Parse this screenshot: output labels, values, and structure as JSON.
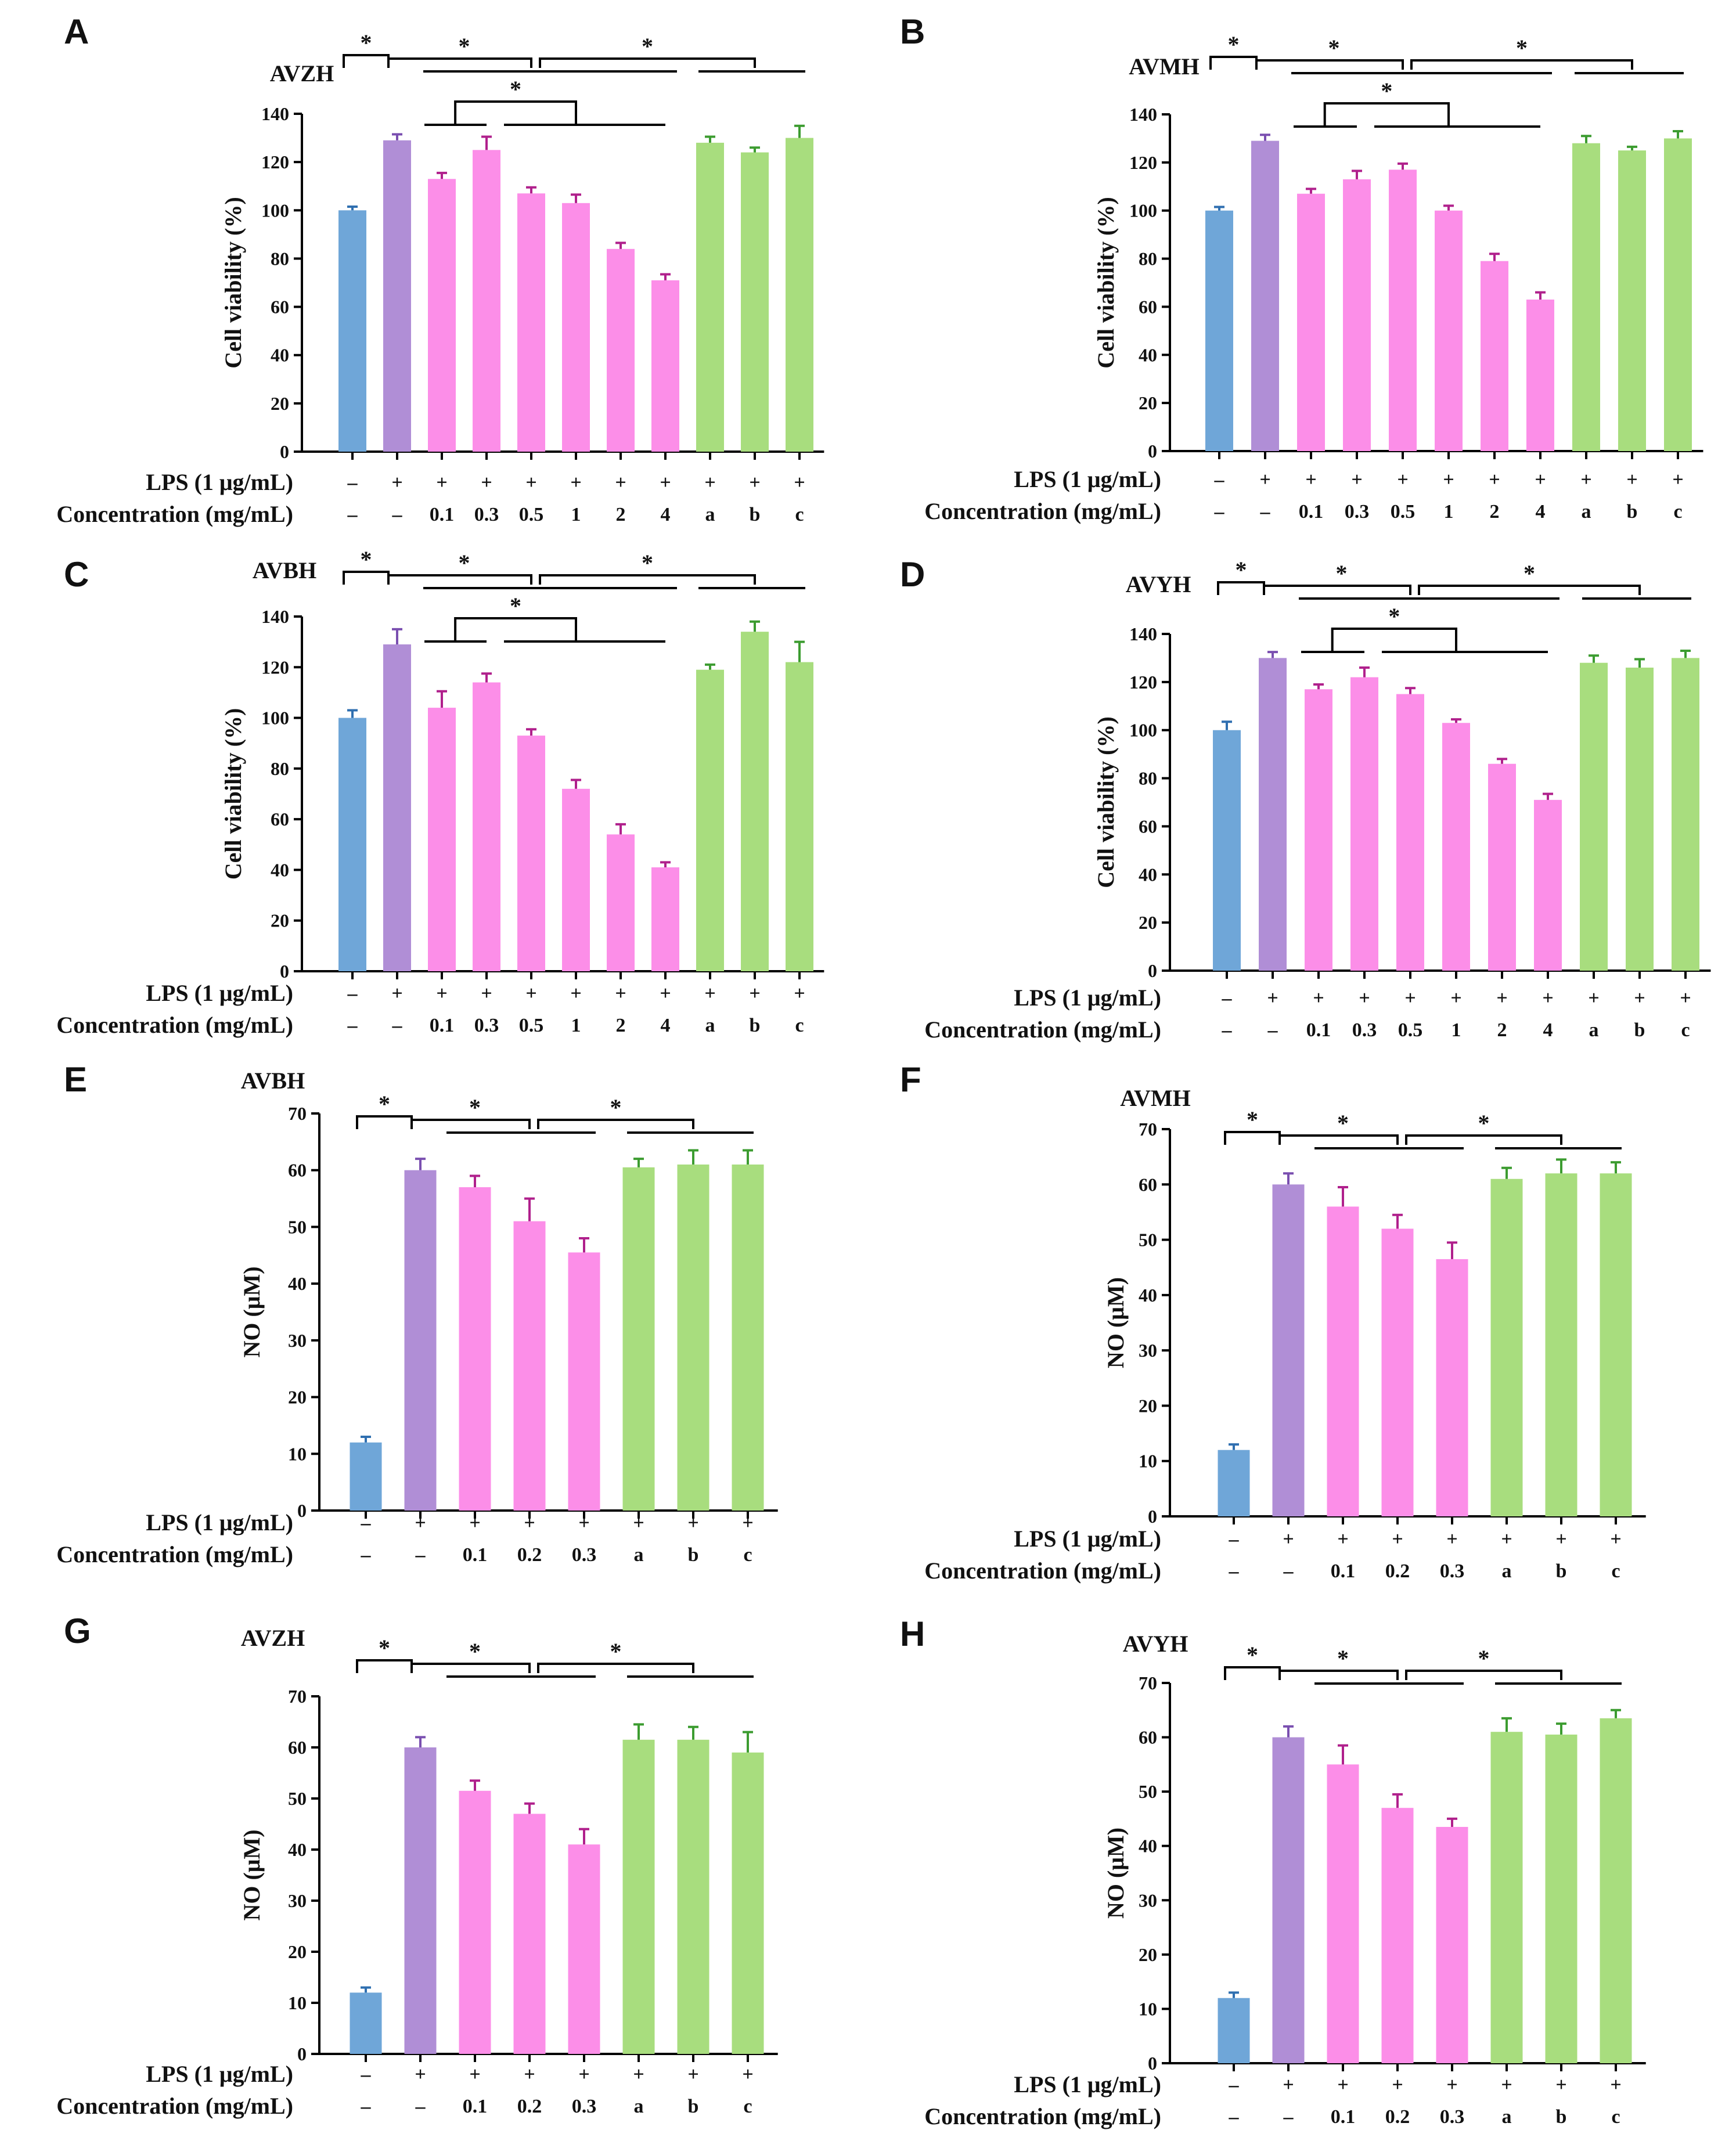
{
  "figure": {
    "lps_label": "LPS (1 μg/mL)",
    "conc_label": "Concentration (mg/mL)",
    "significance_symbol": "*",
    "colors": {
      "control": "#6fa6d8",
      "control_err": "#2f6fb0",
      "lps": "#b08ed6",
      "lps_err": "#7a4fb0",
      "sample": "#fc8ee8",
      "sample_err": "#b0208c",
      "positive": "#a8dd7e",
      "positive_err": "#3c9c30",
      "axis": "#000000"
    }
  },
  "chart_data": [
    {
      "panel": "A",
      "title": "AVZH",
      "type": "bar",
      "ylabel": "Cell viability (%)",
      "ylim": [
        0,
        140
      ],
      "yticks": [
        0,
        20,
        40,
        60,
        80,
        100,
        120,
        140
      ],
      "lps": [
        "–",
        "+",
        "+",
        "+",
        "+",
        "+",
        "+",
        "+",
        "+",
        "+",
        "+"
      ],
      "concentration": [
        "–",
        "–",
        "0.1",
        "0.3",
        "0.5",
        "1",
        "2",
        "4",
        "a",
        "b",
        "c"
      ],
      "groups": [
        "control",
        "lps",
        "sample",
        "sample",
        "sample",
        "sample",
        "sample",
        "sample",
        "positive",
        "positive",
        "positive"
      ],
      "values": [
        100,
        129,
        113,
        125,
        107,
        103,
        84,
        71,
        128,
        124,
        130
      ],
      "errors": [
        1.5,
        2.5,
        2.5,
        5.5,
        2.5,
        3.5,
        2.5,
        2.5,
        2.5,
        2,
        5
      ]
    },
    {
      "panel": "B",
      "title": "AVMH",
      "type": "bar",
      "ylabel": "Cell viability (%)",
      "ylim": [
        0,
        140
      ],
      "yticks": [
        0,
        20,
        40,
        60,
        80,
        100,
        120,
        140
      ],
      "lps": [
        "–",
        "+",
        "+",
        "+",
        "+",
        "+",
        "+",
        "+",
        "+",
        "+",
        "+"
      ],
      "concentration": [
        "–",
        "–",
        "0.1",
        "0.3",
        "0.5",
        "1",
        "2",
        "4",
        "a",
        "b",
        "c"
      ],
      "groups": [
        "control",
        "lps",
        "sample",
        "sample",
        "sample",
        "sample",
        "sample",
        "sample",
        "positive",
        "positive",
        "positive"
      ],
      "values": [
        100,
        129,
        107,
        113,
        117,
        100,
        79,
        63,
        128,
        125,
        130
      ],
      "errors": [
        1.5,
        2.5,
        2,
        3.5,
        2.5,
        2,
        3,
        3,
        3,
        1.5,
        3
      ]
    },
    {
      "panel": "C",
      "title": "AVBH",
      "type": "bar",
      "ylabel": "Cell viability (%)",
      "ylim": [
        0,
        140
      ],
      "yticks": [
        0,
        20,
        40,
        60,
        80,
        100,
        120,
        140
      ],
      "lps": [
        "–",
        "+",
        "+",
        "+",
        "+",
        "+",
        "+",
        "+",
        "+",
        "+",
        "+"
      ],
      "concentration": [
        "–",
        "–",
        "0.1",
        "0.3",
        "0.5",
        "1",
        "2",
        "4",
        "a",
        "b",
        "c"
      ],
      "groups": [
        "control",
        "lps",
        "sample",
        "sample",
        "sample",
        "sample",
        "sample",
        "sample",
        "positive",
        "positive",
        "positive"
      ],
      "values": [
        100,
        129,
        104,
        114,
        93,
        72,
        54,
        41,
        119,
        134,
        122
      ],
      "errors": [
        3,
        6,
        6.5,
        3.5,
        2.5,
        3.5,
        4,
        2,
        2,
        4,
        8
      ]
    },
    {
      "panel": "D",
      "title": "AVYH",
      "type": "bar",
      "ylabel": "Cell viability (%)",
      "ylim": [
        0,
        140
      ],
      "yticks": [
        0,
        20,
        40,
        60,
        80,
        100,
        120,
        140
      ],
      "lps": [
        "–",
        "+",
        "+",
        "+",
        "+",
        "+",
        "+",
        "+",
        "+",
        "+",
        "+"
      ],
      "concentration": [
        "–",
        "–",
        "0.1",
        "0.3",
        "0.5",
        "1",
        "2",
        "4",
        "a",
        "b",
        "c"
      ],
      "groups": [
        "control",
        "lps",
        "sample",
        "sample",
        "sample",
        "sample",
        "sample",
        "sample",
        "positive",
        "positive",
        "positive"
      ],
      "values": [
        100,
        130,
        117,
        122,
        115,
        103,
        86,
        71,
        128,
        126,
        130
      ],
      "errors": [
        3.5,
        2.5,
        2,
        4,
        2.5,
        1.5,
        2,
        2.5,
        3,
        3.5,
        3
      ]
    },
    {
      "panel": "E",
      "title": "AVBH",
      "type": "bar",
      "ylabel": "NO (μM)",
      "ylim": [
        0,
        70
      ],
      "yticks": [
        0,
        10,
        20,
        30,
        40,
        50,
        60,
        70
      ],
      "lps": [
        "–",
        "+",
        "+",
        "+",
        "+",
        "+",
        "+",
        "+"
      ],
      "concentration": [
        "–",
        "–",
        "0.1",
        "0.2",
        "0.3",
        "a",
        "b",
        "c"
      ],
      "groups": [
        "control",
        "lps",
        "sample",
        "sample",
        "sample",
        "positive",
        "positive",
        "positive"
      ],
      "values": [
        12,
        60,
        57,
        51,
        45.5,
        60.5,
        61,
        61
      ],
      "errors": [
        1,
        2,
        2,
        4,
        2.5,
        1.5,
        2.5,
        2.5
      ]
    },
    {
      "panel": "F",
      "title": "AVMH",
      "type": "bar",
      "ylabel": "NO (μM)",
      "ylim": [
        0,
        70
      ],
      "yticks": [
        0,
        10,
        20,
        30,
        40,
        50,
        60,
        70
      ],
      "lps": [
        "–",
        "+",
        "+",
        "+",
        "+",
        "+",
        "+",
        "+"
      ],
      "concentration": [
        "–",
        "–",
        "0.1",
        "0.2",
        "0.3",
        "a",
        "b",
        "c"
      ],
      "groups": [
        "control",
        "lps",
        "sample",
        "sample",
        "sample",
        "positive",
        "positive",
        "positive"
      ],
      "values": [
        12,
        60,
        56,
        52,
        46.5,
        61,
        62,
        62
      ],
      "errors": [
        1,
        2,
        3.5,
        2.5,
        3,
        2,
        2.5,
        2
      ]
    },
    {
      "panel": "G",
      "title": "AVZH",
      "type": "bar",
      "ylabel": "NO (μM)",
      "ylim": [
        0,
        70
      ],
      "yticks": [
        0,
        10,
        20,
        30,
        40,
        50,
        60,
        70
      ],
      "lps": [
        "–",
        "+",
        "+",
        "+",
        "+",
        "+",
        "+",
        "+"
      ],
      "concentration": [
        "–",
        "–",
        "0.1",
        "0.2",
        "0.3",
        "a",
        "b",
        "c"
      ],
      "groups": [
        "control",
        "lps",
        "sample",
        "sample",
        "sample",
        "positive",
        "positive",
        "positive"
      ],
      "values": [
        12,
        60,
        51.5,
        47,
        41,
        61.5,
        61.5,
        59
      ],
      "errors": [
        1,
        2,
        2,
        2,
        3,
        3,
        2.5,
        4
      ]
    },
    {
      "panel": "H",
      "title": "AVYH",
      "type": "bar",
      "ylabel": "NO (μM)",
      "ylim": [
        0,
        70
      ],
      "yticks": [
        0,
        10,
        20,
        30,
        40,
        50,
        60,
        70
      ],
      "lps": [
        "–",
        "+",
        "+",
        "+",
        "+",
        "+",
        "+",
        "+"
      ],
      "concentration": [
        "–",
        "–",
        "0.1",
        "0.2",
        "0.3",
        "a",
        "b",
        "c"
      ],
      "groups": [
        "control",
        "lps",
        "sample",
        "sample",
        "sample",
        "positive",
        "positive",
        "positive"
      ],
      "values": [
        12,
        60,
        55,
        47,
        43.5,
        61,
        60.5,
        63.5
      ],
      "errors": [
        1,
        2,
        3.5,
        2.5,
        1.5,
        2.5,
        2,
        1.5
      ]
    }
  ]
}
